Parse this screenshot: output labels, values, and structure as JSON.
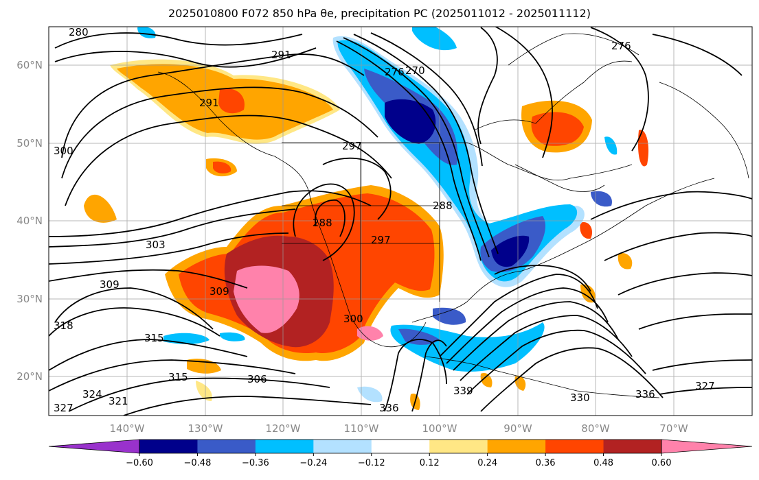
{
  "title": "2025010800 F072 850 hPa θe, precipitation PC (2025011012 - 2025011112)",
  "map": {
    "lon_range": [
      -150,
      -60
    ],
    "lat_range": [
      15,
      65
    ],
    "grid_lons": [
      -140,
      -130,
      -120,
      -110,
      -100,
      -90,
      -80,
      -70
    ],
    "grid_lats": [
      20,
      30,
      40,
      50,
      60
    ],
    "lon_labels": [
      "140°W",
      "130°W",
      "120°W",
      "110°W",
      "100°W",
      "90°W",
      "80°W",
      "70°W"
    ],
    "lat_labels": [
      "20°N",
      "30°N",
      "40°N",
      "50°N",
      "60°N"
    ],
    "contour_labels": [
      "280",
      "291",
      "291",
      "297",
      "300",
      "303",
      "309",
      "309",
      "318",
      "315",
      "315",
      "306",
      "324",
      "321",
      "327",
      "297",
      "288",
      "276",
      "270",
      "276",
      "300",
      "336",
      "339",
      "330",
      "336",
      "327",
      "288"
    ]
  },
  "colorbar": {
    "tick_labels": [
      "−0.60",
      "−0.48",
      "−0.36",
      "−0.24",
      "−0.12",
      "0.12",
      "0.24",
      "0.36",
      "0.48",
      "0.60"
    ],
    "bins": [
      {
        "color": "#9932cc"
      },
      {
        "color": "#00008b"
      },
      {
        "color": "#3a5bc8"
      },
      {
        "color": "#00bfff"
      },
      {
        "color": "#b3e1ff"
      },
      {
        "color": "#ffffff"
      },
      {
        "color": "#ffe785"
      },
      {
        "color": "#ffa500"
      },
      {
        "color": "#ff4500"
      },
      {
        "color": "#b22222"
      },
      {
        "color": "#ff82ab"
      }
    ]
  }
}
